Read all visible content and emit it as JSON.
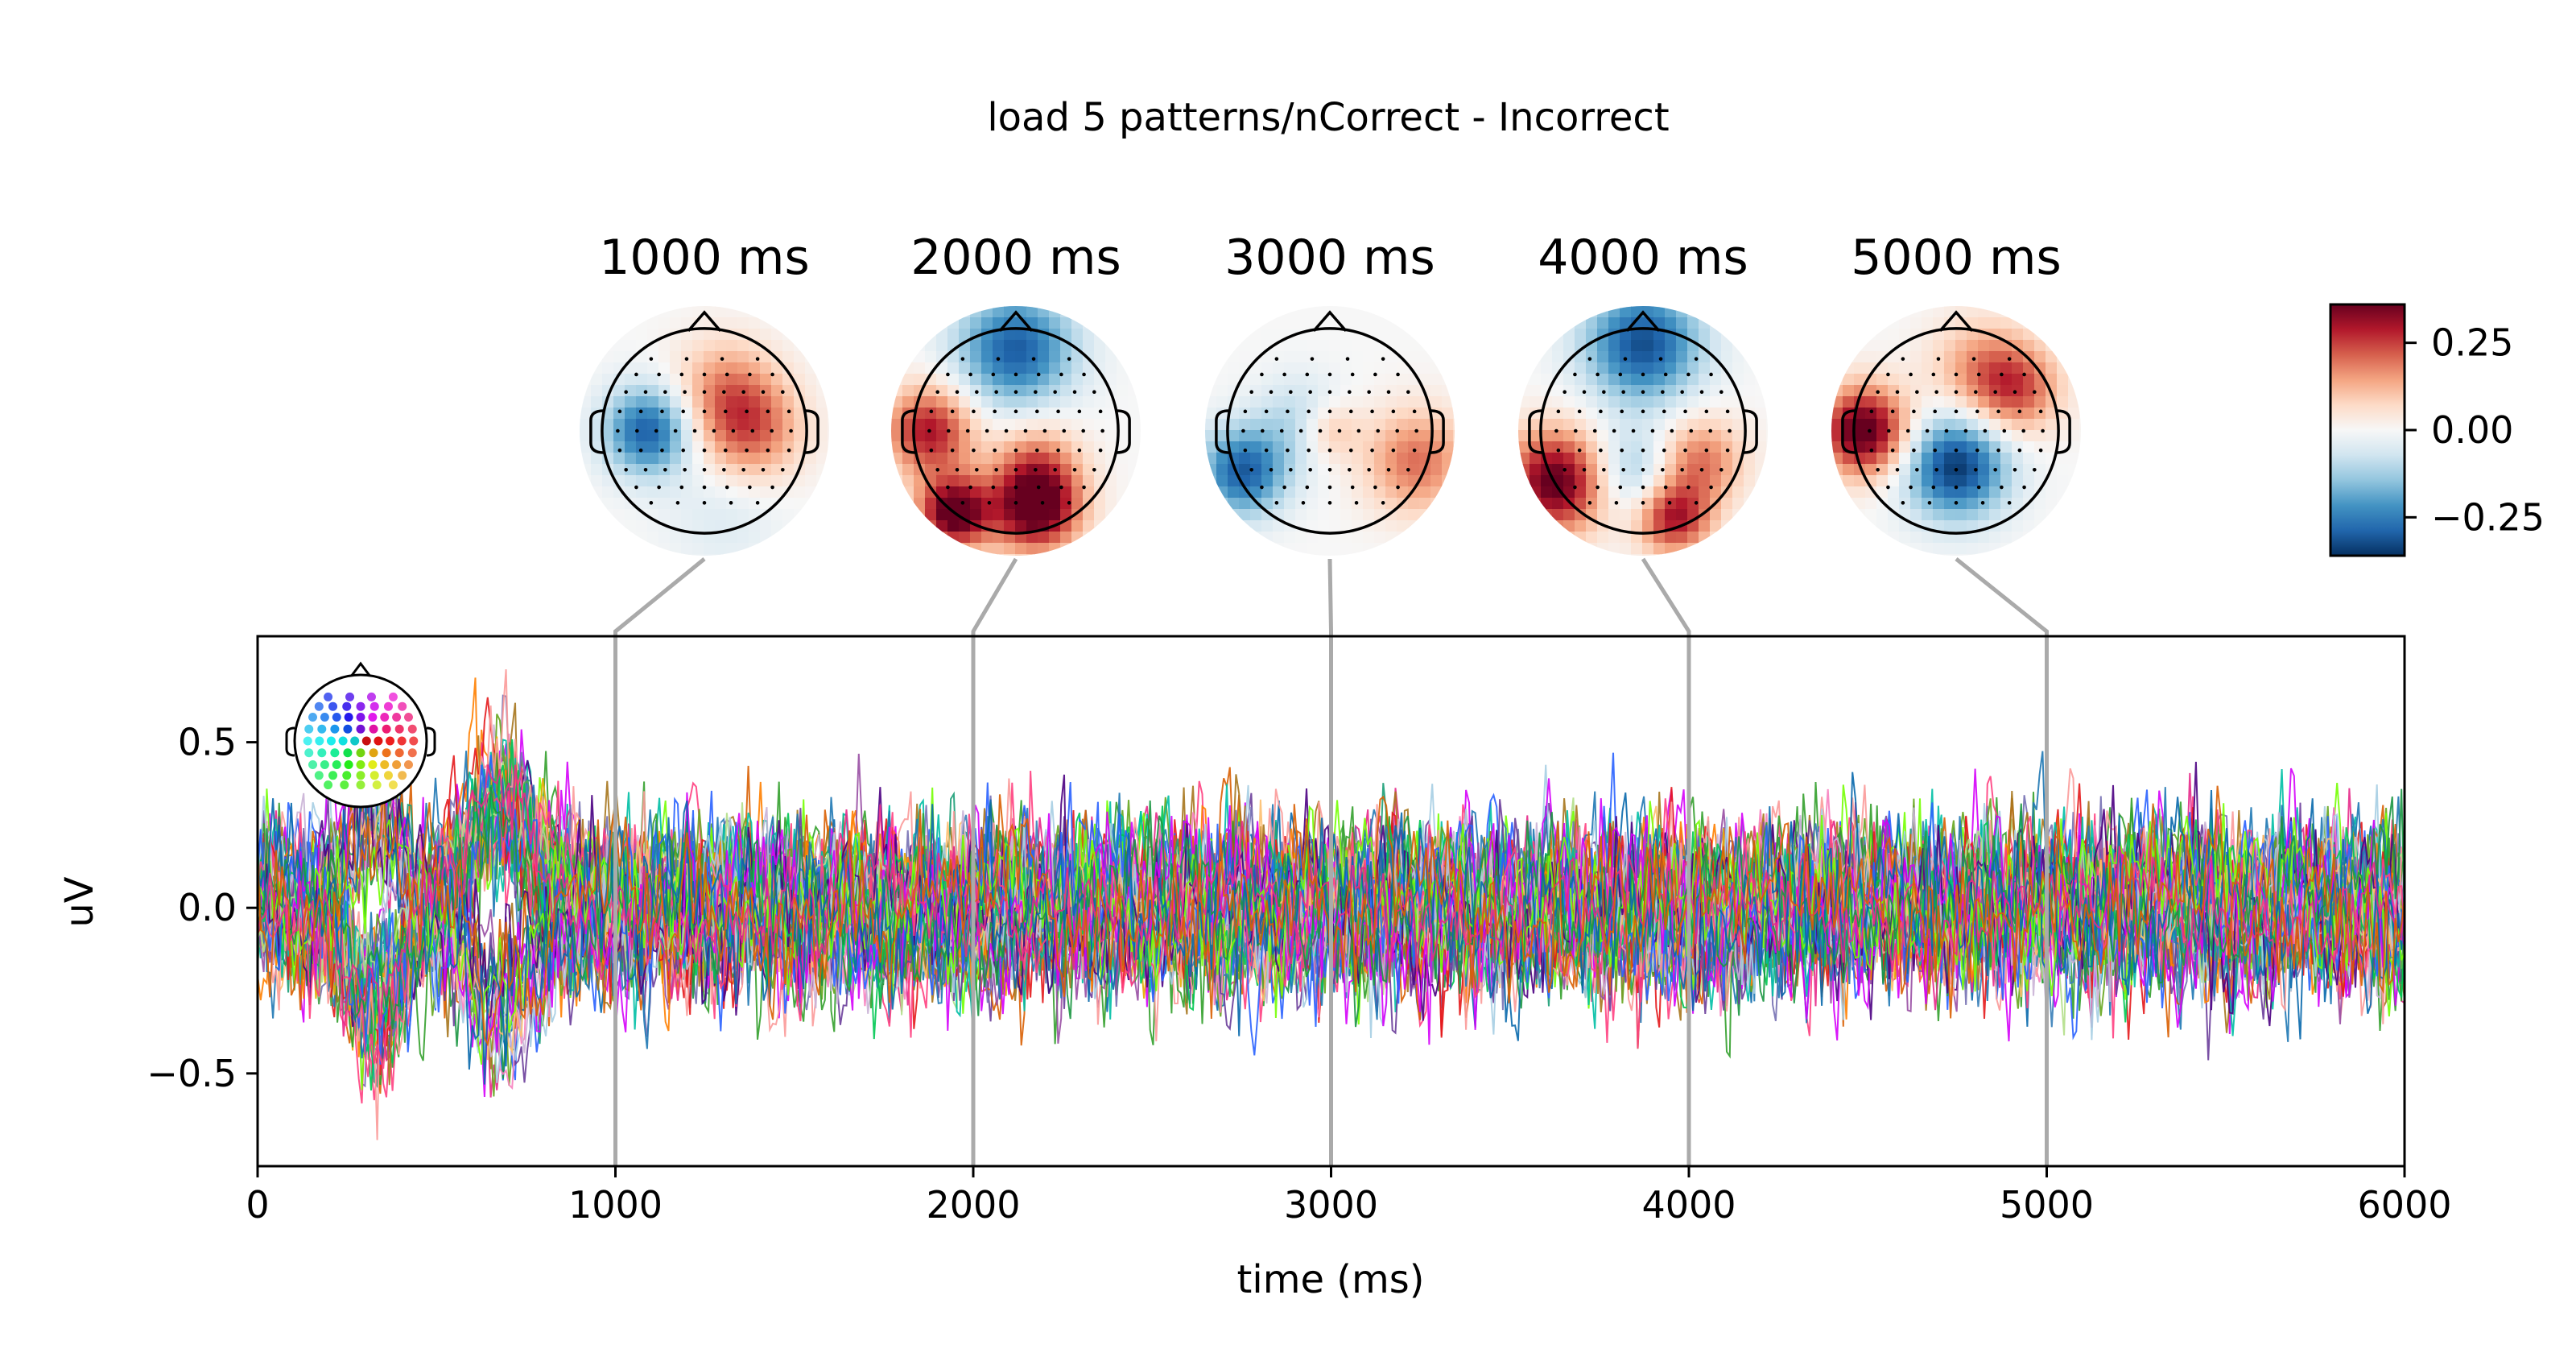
{
  "chart_data": {
    "type": "line",
    "title": "load 5 patterns/nCorrect - Incorrect",
    "xlabel": "time (ms)",
    "ylabel": "uV",
    "xlim": [
      0,
      6000
    ],
    "ylim": [
      -0.78,
      0.82
    ],
    "xticks": [
      0,
      1000,
      2000,
      3000,
      4000,
      5000,
      6000
    ],
    "xtick_labels": [
      "0",
      "1000",
      "2000",
      "3000",
      "4000",
      "5000",
      "6000"
    ],
    "yticks": [
      -0.5,
      0.0,
      0.5
    ],
    "ytick_labels": [
      "−0.5",
      "0.0",
      "0.5"
    ],
    "grid": false,
    "n_channels": 64,
    "channel_colors": [
      "#1a9641",
      "#0868ac",
      "#e7298a",
      "#d95f02",
      "#7570b3",
      "#66a61e",
      "#e6ab02",
      "#a6761d",
      "#1b9e77",
      "#984ea3",
      "#ff7f00",
      "#4daf4a",
      "#377eb8",
      "#e41a1c",
      "#f781bf",
      "#00bfa5",
      "#6a3d9a",
      "#33a02c",
      "#1f78b4",
      "#fb9a99",
      "#b2df8a",
      "#a6cee3",
      "#cab2d6",
      "#fdbf6f",
      "#4b0082",
      "#00c853",
      "#2962ff",
      "#d500f9",
      "#ff4081",
      "#76ff03"
    ],
    "topomaps": [
      {
        "time_label": "1000 ms",
        "time": 1000
      },
      {
        "time_label": "2000 ms",
        "time": 2000
      },
      {
        "time_label": "3000 ms",
        "time": 3000
      },
      {
        "time_label": "4000 ms",
        "time": 4000
      },
      {
        "time_label": "5000 ms",
        "time": 5000
      }
    ],
    "colorbar": {
      "colormap": "RdBu_r",
      "range": [
        -0.36,
        0.36
      ],
      "ticks": [
        0.25,
        0.0,
        -0.25
      ],
      "tick_labels": [
        "0.25",
        "0.00",
        "−0.25"
      ],
      "colors": [
        "#053061",
        "#2166ac",
        "#4393c3",
        "#92c5de",
        "#d1e5f0",
        "#f7f7f7",
        "#fddbc7",
        "#f4a582",
        "#d6604d",
        "#b2182b",
        "#67001f"
      ]
    },
    "sensor_legend": {
      "type": "sensor-head-inset",
      "placement": "top-left"
    }
  }
}
